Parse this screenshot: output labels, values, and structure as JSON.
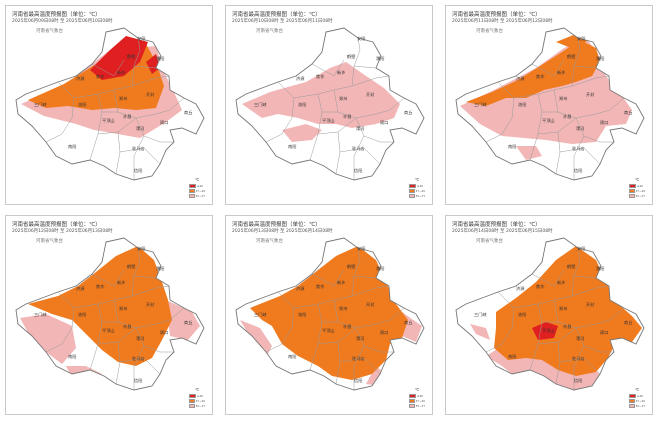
{
  "colors": {
    "c35": "#f2b6b6",
    "c37": "#f07a1e",
    "c40": "#e02020",
    "border": "#777777"
  },
  "legend": {
    "unit": "℃",
    "items": [
      {
        "label": "≥40",
        "color": "#e02020"
      },
      {
        "label": "37~40",
        "color": "#f07a1e"
      },
      {
        "label": "35~37",
        "color": "#f2b6b6"
      }
    ]
  },
  "panels": [
    {
      "title": "河南省最高温度预报图（单位：℃）",
      "date": "2025年06月09日08时  至  2025年06月10日08时",
      "org": "河南省气象台",
      "levels": {
        "pink": 1,
        "orange": 1,
        "red": 1
      }
    },
    {
      "title": "河南省最高温度预报图（单位：℃）",
      "date": "2025年06月10日08时  至  2025年06月11日08时",
      "org": "河南省气象台",
      "levels": {
        "pink": 1,
        "orange": 0,
        "red": 0
      }
    },
    {
      "title": "河南省最高温度预报图（单位：℃）",
      "date": "2025年06月11日08时  至  2025年06月12日08时",
      "org": "河南省气象台",
      "levels": {
        "pink": 1,
        "orange": 1,
        "red": 0
      }
    },
    {
      "title": "河南省最高温度预报图（单位：℃）",
      "date": "2025年06月12日08时  至  2025年06月13日08时",
      "org": "河南省气象台",
      "levels": {
        "pink": 1,
        "orange": 1,
        "red": 0
      }
    },
    {
      "title": "河南省最高温度预报图（单位：℃）",
      "date": "2025年06月13日08时  至  2025年06月14日08时",
      "org": "河南省气象台",
      "levels": {
        "pink": 1,
        "orange": 1,
        "red": 0
      }
    },
    {
      "title": "河南省最高温度预报图（单位：℃）",
      "date": "2025年06月14日08时  至  2025年06月15日08时",
      "org": "河南省气象台",
      "levels": {
        "pink": 1,
        "orange": 1,
        "red": 1
      }
    }
  ],
  "cities": {
    "anyang": "安阳",
    "hebi": "鹤壁",
    "xinxiang": "新乡",
    "jiaozuo": "焦作",
    "puyang": "濮阳",
    "jiyuan": "济源",
    "luoyang": "洛阳",
    "zhengzhou": "郑州",
    "kaifeng": "开封",
    "shangqiu": "商丘",
    "sanmenxia": "三门峡",
    "xuchang": "许昌",
    "pingdingshan": "平顶山",
    "luohe": "漯河",
    "zhoukou": "周口",
    "nanyang": "南阳",
    "zhumadian": "驻马店",
    "xinyang": "信阳"
  }
}
